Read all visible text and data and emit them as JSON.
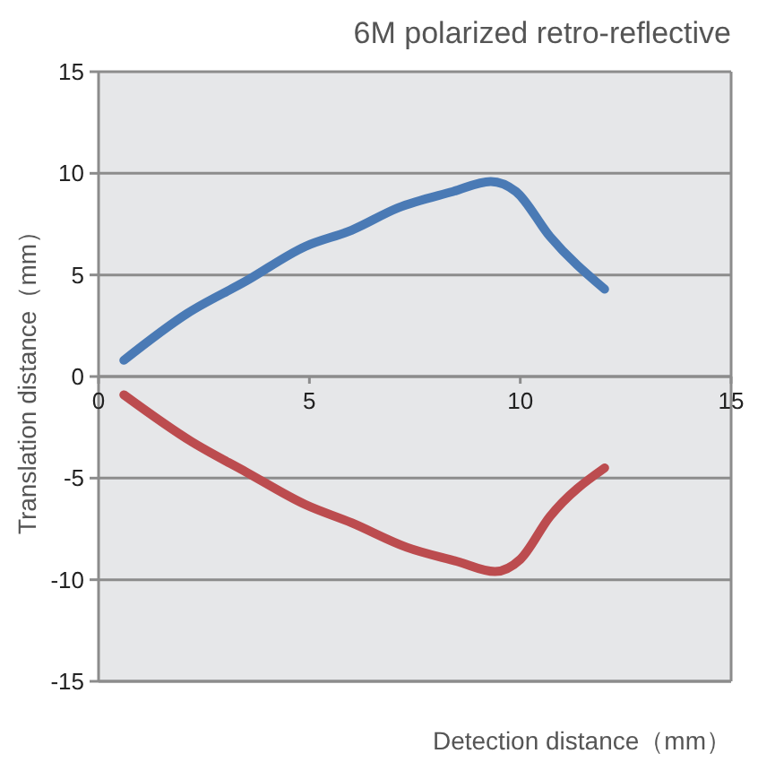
{
  "chart_data": {
    "type": "line",
    "title": "6M polarized retro-reflective",
    "xlabel": "Detection distance（mm）",
    "ylabel": "Translation distance（mm）",
    "xlim": [
      0,
      15
    ],
    "xticks": [
      0,
      5,
      10,
      15
    ],
    "ylim": [
      -15,
      15
    ],
    "yticks": [
      -15,
      -10,
      -5,
      0,
      5,
      10,
      15
    ],
    "grid": "y",
    "series": [
      {
        "color": "#4a7ab5",
        "x": [
          0.6,
          2.1,
          3.5,
          4.9,
          6,
          7.1,
          8.4,
          9.3,
          9.9,
          10.7,
          12
        ],
        "values": [
          0.8,
          3.1,
          4.7,
          6.4,
          7.2,
          8.3,
          9.1,
          9.6,
          9.1,
          6.9,
          4.3
        ]
      },
      {
        "color": "#bc4c4f",
        "x": [
          0.6,
          2.2,
          3.5,
          4.9,
          6,
          7.3,
          8.5,
          9.4,
          10,
          10.7,
          12
        ],
        "values": [
          -0.9,
          -3.2,
          -4.7,
          -6.3,
          -7.2,
          -8.4,
          -9.1,
          -9.6,
          -9,
          -6.9,
          -4.5
        ]
      }
    ]
  }
}
